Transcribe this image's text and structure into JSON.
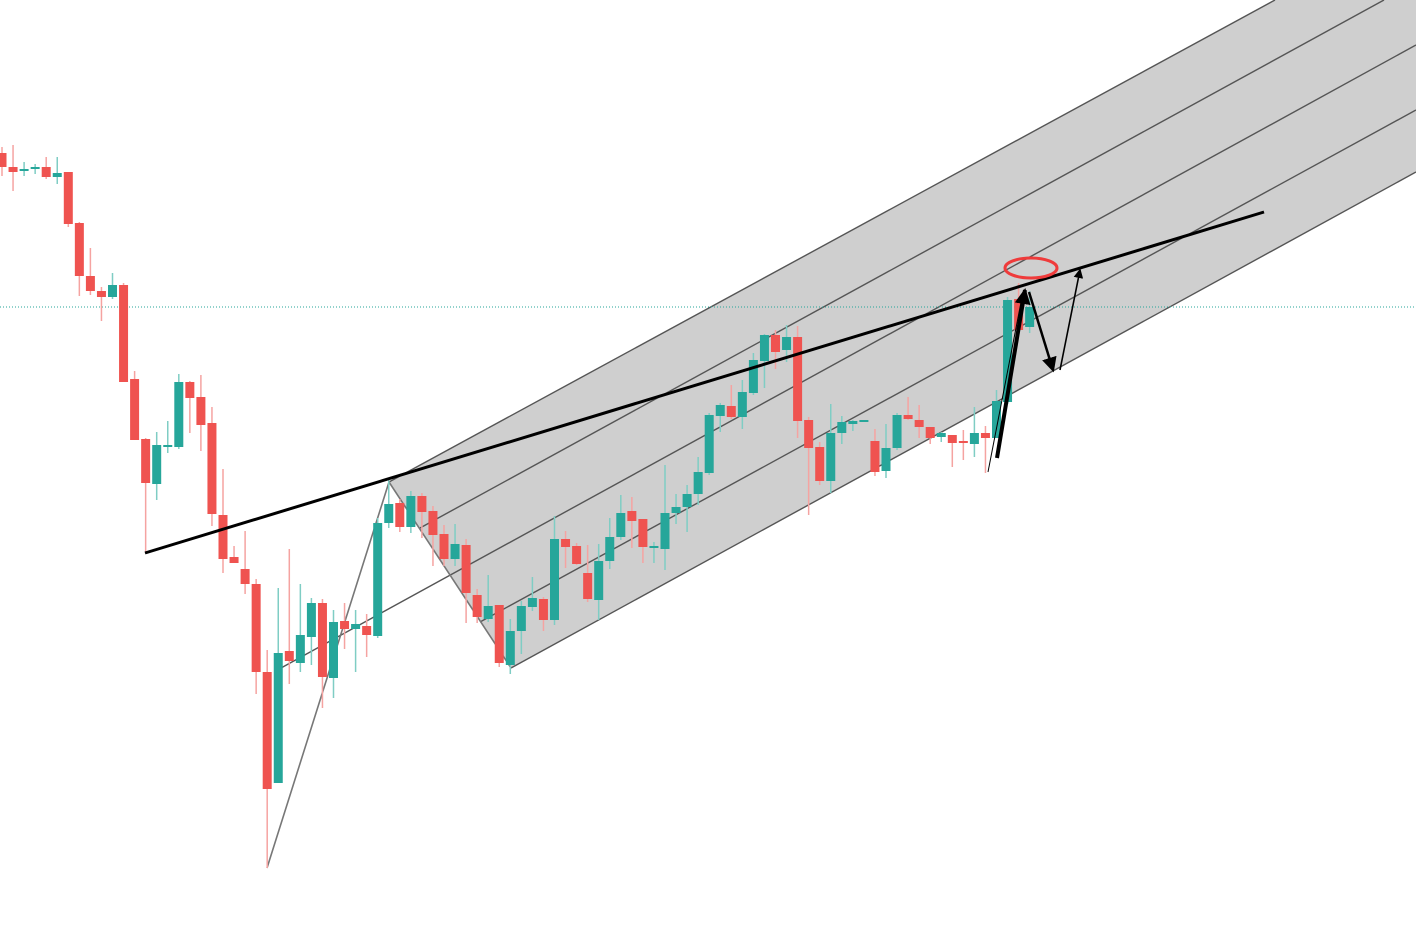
{
  "chart_data": {
    "type": "candlestick",
    "title": "",
    "xlabel": "",
    "ylabel": "",
    "ylim": [
      0,
      93.9
    ],
    "grid": false,
    "colors": {
      "up": "#26a69a",
      "down": "#ef5350",
      "up_wick": "#7fcdc4",
      "down_wick": "#f5a3a1",
      "channel_fill": "#cccccc",
      "channel_line": "#555555",
      "trendline": "#000000",
      "highlight_ellipse": "#ef3b3b",
      "last_price_line": "#26a69a"
    },
    "last_price_line": 63.2,
    "candles_ohlc": [
      [
        78.6,
        79.2,
        76.3,
        77.2
      ],
      [
        77.2,
        79.4,
        74.8,
        76.7
      ],
      [
        76.8,
        77.7,
        76.3,
        77.0
      ],
      [
        77.0,
        77.5,
        76.5,
        77.2
      ],
      [
        77.2,
        78.2,
        76.0,
        76.2
      ],
      [
        76.2,
        78.2,
        75.5,
        76.6
      ],
      [
        76.7,
        76.7,
        71.2,
        71.5
      ],
      [
        71.6,
        71.7,
        64.3,
        66.3
      ],
      [
        66.3,
        69.1,
        64.4,
        64.8
      ],
      [
        64.8,
        65.2,
        61.8,
        64.2
      ],
      [
        64.2,
        66.6,
        64.0,
        65.4
      ],
      [
        65.4,
        65.6,
        55.7,
        55.7
      ],
      [
        56.0,
        56.8,
        49.9,
        49.9
      ],
      [
        50.0,
        50.1,
        38.6,
        45.6
      ],
      [
        45.5,
        50.7,
        43.9,
        49.4
      ],
      [
        49.3,
        51.8,
        48.6,
        49.4
      ],
      [
        49.2,
        56.5,
        49.0,
        55.7
      ],
      [
        55.7,
        55.8,
        50.6,
        54.1
      ],
      [
        54.2,
        56.4,
        48.8,
        51.4
      ],
      [
        51.6,
        53.2,
        41.3,
        42.5
      ],
      [
        42.4,
        47.0,
        36.6,
        38.0
      ],
      [
        38.2,
        39.3,
        37.6,
        37.6
      ],
      [
        37.0,
        40.8,
        34.5,
        35.5
      ],
      [
        35.5,
        36.0,
        24.5,
        26.7
      ],
      [
        26.7,
        28.9,
        7.1,
        15.0
      ],
      [
        15.6,
        35.1,
        15.6,
        28.6
      ],
      [
        28.8,
        39.0,
        25.5,
        27.8
      ],
      [
        27.6,
        35.5,
        26.7,
        30.4
      ],
      [
        30.2,
        34.1,
        27.4,
        33.6
      ],
      [
        33.6,
        34.0,
        23.1,
        26.2
      ],
      [
        26.1,
        32.9,
        24.1,
        31.7
      ],
      [
        31.8,
        33.6,
        29.0,
        31.0
      ],
      [
        31.0,
        32.9,
        26.7,
        31.5
      ],
      [
        31.3,
        32.5,
        28.2,
        30.4
      ],
      [
        30.3,
        42.1,
        30.1,
        41.6
      ],
      [
        41.6,
        45.9,
        41.1,
        43.5
      ],
      [
        43.6,
        44.0,
        40.7,
        41.2
      ],
      [
        41.2,
        44.8,
        40.6,
        44.3
      ],
      [
        44.3,
        44.6,
        40.1,
        42.7
      ],
      [
        42.8,
        43.3,
        37.3,
        40.4
      ],
      [
        40.5,
        41.4,
        37.3,
        38.0
      ],
      [
        38.0,
        41.5,
        37.3,
        39.5
      ],
      [
        39.4,
        40.0,
        31.6,
        34.6
      ],
      [
        34.4,
        35.0,
        31.6,
        32.2
      ],
      [
        32.0,
        36.4,
        31.7,
        33.3
      ],
      [
        33.4,
        33.4,
        27.2,
        27.6
      ],
      [
        27.4,
        32.0,
        26.5,
        30.8
      ],
      [
        30.8,
        33.8,
        28.5,
        33.3
      ],
      [
        33.2,
        36.2,
        32.8,
        34.1
      ],
      [
        34.0,
        34.2,
        30.8,
        31.9
      ],
      [
        31.9,
        42.3,
        31.4,
        40.0
      ],
      [
        40.0,
        40.8,
        37.1,
        39.2
      ],
      [
        39.3,
        39.6,
        37.4,
        37.5
      ],
      [
        36.6,
        39.4,
        33.7,
        34.0
      ],
      [
        33.9,
        39.5,
        31.9,
        37.8
      ],
      [
        37.8,
        42.1,
        37.0,
        40.2
      ],
      [
        40.2,
        44.4,
        39.9,
        42.6
      ],
      [
        42.8,
        44.2,
        39.1,
        41.8
      ],
      [
        42.0,
        42.0,
        37.6,
        39.2
      ],
      [
        39.2,
        39.7,
        37.6,
        39.3
      ],
      [
        39.0,
        47.4,
        36.9,
        42.6
      ],
      [
        42.6,
        44.5,
        41.5,
        43.2
      ],
      [
        43.2,
        45.4,
        40.7,
        44.5
      ],
      [
        44.5,
        48.2,
        43.4,
        46.7
      ],
      [
        46.6,
        52.6,
        46.4,
        52.4
      ],
      [
        52.3,
        53.6,
        50.7,
        53.4
      ],
      [
        53.3,
        55.4,
        52.0,
        52.2
      ],
      [
        52.2,
        55.9,
        51.0,
        54.7
      ],
      [
        54.6,
        58.6,
        54.4,
        57.9
      ],
      [
        57.8,
        60.5,
        55.1,
        60.4
      ],
      [
        60.4,
        60.9,
        57.0,
        58.7
      ],
      [
        58.9,
        61.4,
        57.7,
        60.2
      ],
      [
        60.2,
        61.3,
        50.1,
        51.8
      ],
      [
        51.9,
        52.2,
        42.4,
        49.1
      ],
      [
        49.2,
        49.7,
        45.4,
        45.8
      ],
      [
        45.8,
        53.5,
        44.6,
        50.6
      ],
      [
        50.6,
        52.3,
        49.5,
        51.7
      ],
      [
        51.5,
        51.9,
        50.8,
        51.8
      ],
      [
        51.8,
        51.9,
        51.7,
        51.9
      ],
      [
        49.8,
        51.0,
        46.3,
        46.7
      ],
      [
        46.8,
        51.5,
        46.1,
        49.1
      ],
      [
        49.1,
        52.6,
        48.9,
        52.4
      ],
      [
        52.4,
        54.2,
        51.9,
        52.0
      ],
      [
        51.9,
        53.4,
        50.1,
        51.2
      ],
      [
        51.2,
        51.2,
        49.5,
        50.1
      ],
      [
        50.2,
        50.7,
        49.7,
        50.6
      ],
      [
        50.4,
        50.4,
        47.2,
        49.6
      ],
      [
        49.8,
        50.9,
        47.9,
        49.6
      ],
      [
        49.5,
        53.2,
        48.2,
        50.6
      ],
      [
        50.6,
        51.3,
        46.6,
        50.1
      ],
      [
        50.1,
        54.9,
        50.1,
        53.8
      ],
      [
        53.7,
        64.2,
        53.5,
        63.9
      ],
      [
        64.0,
        65.6,
        60.6,
        60.9
      ],
      [
        61.2,
        64.8,
        60.6,
        63.2
      ]
    ]
  }
}
